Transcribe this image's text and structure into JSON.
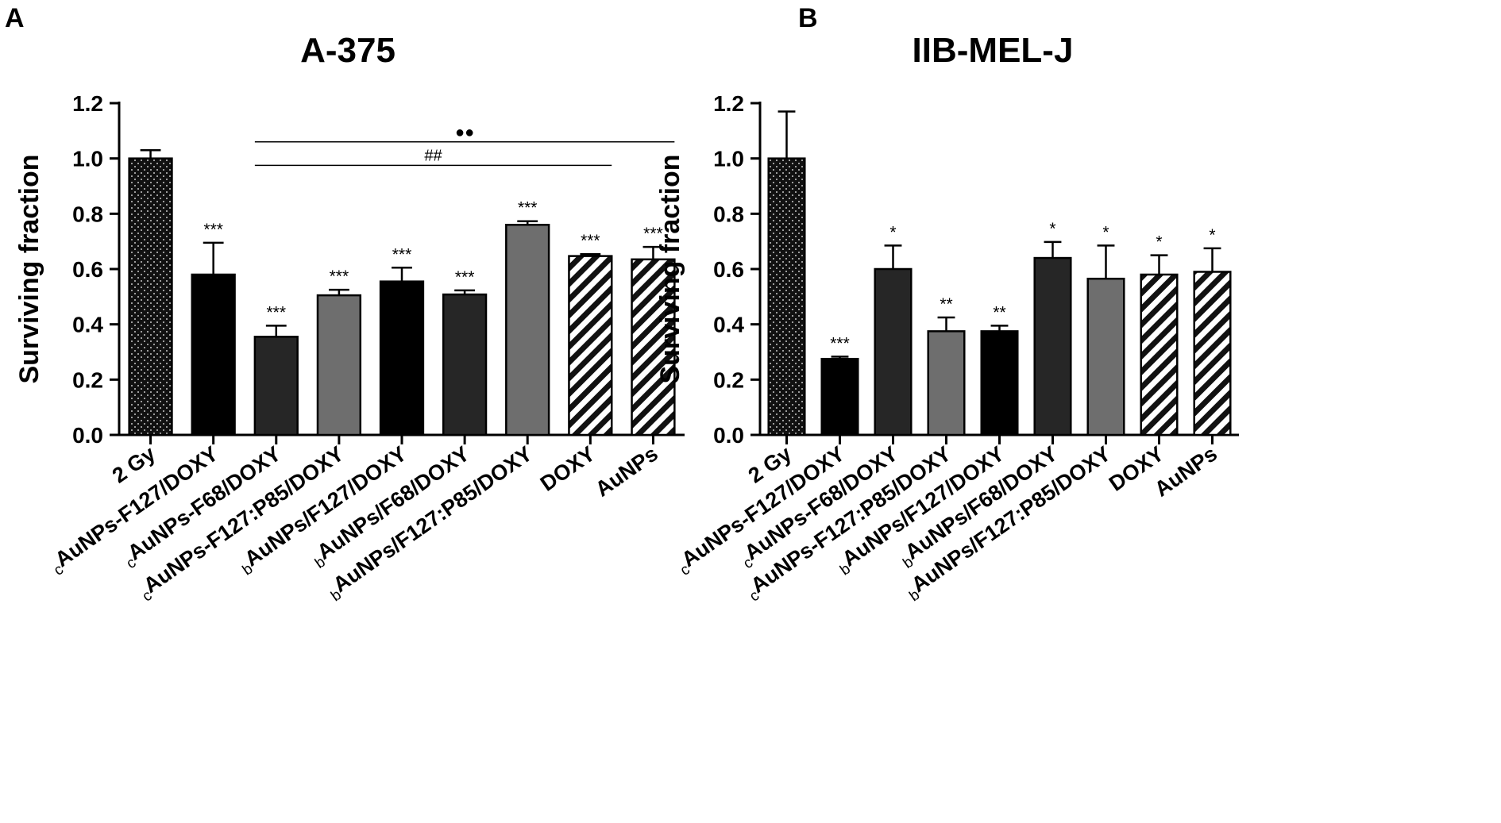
{
  "figure": {
    "panels": [
      "A",
      "B"
    ]
  },
  "chart_data": [
    {
      "panel": "A",
      "type": "bar",
      "title": "A-375",
      "ylabel": "Surviving fraction",
      "xlabel": "",
      "ylim": [
        0,
        1.2
      ],
      "yticks": [
        "0.0",
        "0.2",
        "0.4",
        "0.6",
        "0.8",
        "1.0",
        "1.2"
      ],
      "categories": [
        {
          "prefix": "",
          "label": "2 Gy"
        },
        {
          "prefix": "c",
          "label": "AuNPs-F127/DOXY"
        },
        {
          "prefix": "c",
          "label": "AuNPs-F68/DOXY"
        },
        {
          "prefix": "c",
          "label": "AuNPs-F127:P85/DOXY"
        },
        {
          "prefix": "b",
          "label": "AuNPs/F127/DOXY"
        },
        {
          "prefix": "b",
          "label": "AuNPs/F68/DOXY"
        },
        {
          "prefix": "b",
          "label": "AuNPs/F127:P85/DOXY"
        },
        {
          "prefix": "",
          "label": "DOXY"
        },
        {
          "prefix": "",
          "label": "AuNPs"
        }
      ],
      "values": [
        1.0,
        0.58,
        0.355,
        0.505,
        0.555,
        0.508,
        0.76,
        0.647,
        0.635
      ],
      "errors": [
        0.03,
        0.115,
        0.04,
        0.02,
        0.05,
        0.015,
        0.013,
        0.007,
        0.045
      ],
      "bar_styles": [
        "dots",
        "black",
        "dark",
        "mid",
        "black",
        "dark",
        "mid",
        "stripes",
        "stripes"
      ],
      "significance": [
        "",
        "***",
        "***",
        "***",
        "***",
        "***",
        "***",
        "***",
        "***"
      ],
      "annotations": [
        {
          "text": "●●",
          "from_index": 2,
          "to_index": 8,
          "y": 1.06
        },
        {
          "text": "##",
          "from_index": 2,
          "to_index": 7,
          "y": 0.975
        }
      ],
      "grid": false,
      "legend": "none"
    },
    {
      "panel": "B",
      "type": "bar",
      "title": "IIB-MEL-J",
      "ylabel": "Surviving fraction",
      "xlabel": "",
      "ylim": [
        0,
        1.2
      ],
      "yticks": [
        "0.0",
        "0.2",
        "0.4",
        "0.6",
        "0.8",
        "1.0",
        "1.2"
      ],
      "categories": [
        {
          "prefix": "",
          "label": "2 Gy"
        },
        {
          "prefix": "c",
          "label": "AuNPs-F127/DOXY"
        },
        {
          "prefix": "c",
          "label": "AuNPs-F68/DOXY"
        },
        {
          "prefix": "c",
          "label": "AuNPs-F127:P85/DOXY"
        },
        {
          "prefix": "b",
          "label": "AuNPs/F127/DOXY"
        },
        {
          "prefix": "b",
          "label": "AuNPs/F68/DOXY"
        },
        {
          "prefix": "b",
          "label": "AuNPs/F127:P85/DOXY"
        },
        {
          "prefix": "",
          "label": "DOXY"
        },
        {
          "prefix": "",
          "label": "AuNPs"
        }
      ],
      "values": [
        1.0,
        0.275,
        0.6,
        0.375,
        0.375,
        0.64,
        0.565,
        0.58,
        0.59
      ],
      "errors": [
        0.17,
        0.008,
        0.085,
        0.05,
        0.02,
        0.058,
        0.12,
        0.07,
        0.085
      ],
      "bar_styles": [
        "dots",
        "black",
        "dark",
        "mid",
        "black",
        "dark",
        "mid",
        "stripes",
        "stripes"
      ],
      "significance": [
        "",
        "***",
        "*",
        "**",
        "**",
        "*",
        "*",
        "*",
        "*"
      ],
      "annotations": [],
      "grid": false,
      "legend": "none"
    }
  ],
  "colors": {
    "black": "#000000",
    "dark": "#262626",
    "mid": "#6e6e6e",
    "dots_bg": "#111111",
    "dots_fg": "#ffffff",
    "stripes_bg": "#ffffff",
    "stripes_fg": "#111111"
  }
}
